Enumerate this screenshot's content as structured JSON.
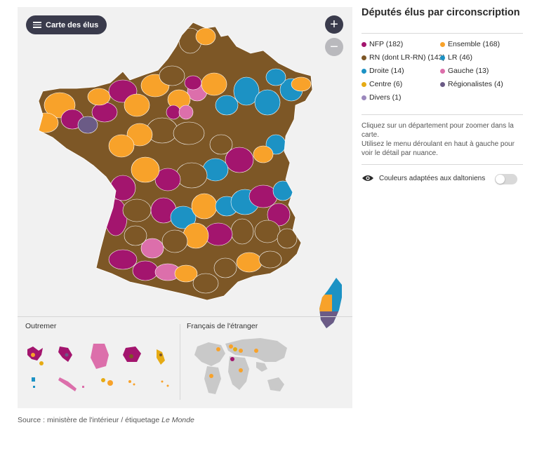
{
  "map": {
    "menu_label": "Carte des élus",
    "zoom_in": "+",
    "zoom_out": "−",
    "outremer_label": "Outremer",
    "etranger_label": "Français de l'étranger"
  },
  "sidebar": {
    "title": "Députés élus par circonscription",
    "legend": [
      {
        "label": "NFP (182)",
        "color": "#a3156e"
      },
      {
        "label": "Ensemble (168)",
        "color": "#f8a22a"
      },
      {
        "label": "RN (dont LR-RN) (143)",
        "color": "#7d5726"
      },
      {
        "label": "LR (46)",
        "color": "#1c92c4"
      },
      {
        "label": "Droite (14)",
        "color": "#1c92c4"
      },
      {
        "label": "Gauche (13)",
        "color": "#dc6fab"
      },
      {
        "label": "Centre (6)",
        "color": "#e6ab14"
      },
      {
        "label": "Régionalistes (4)",
        "color": "#6b5b86"
      },
      {
        "label": "Divers (1)",
        "color": "#9b88bd"
      }
    ],
    "help_line1": "Cliquez sur un département pour zoomer dans la carte.",
    "help_line2": "Utilisez le menu déroulant en haut à gauche pour voir le détail par nuance.",
    "colorblind_label": "Couleurs adaptées aux daltoniens"
  },
  "source": {
    "prefix": "Source : ministère de l'intérieur / étiquetage ",
    "outlet": "Le Monde"
  },
  "colors": {
    "nfp": "#a3156e",
    "ensemble": "#f8a22a",
    "rn": "#7d5726",
    "lr": "#1c92c4",
    "gauche": "#dc6fab",
    "centre": "#e6ab14",
    "regionalistes": "#6b5b86",
    "divers": "#9b88bd"
  }
}
